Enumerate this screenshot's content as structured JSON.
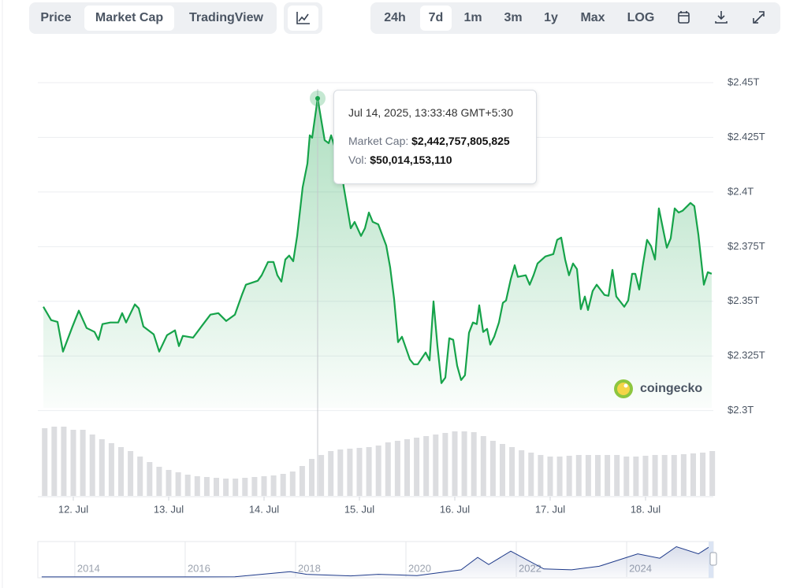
{
  "toolbar": {
    "tabs": [
      "Price",
      "Market Cap",
      "TradingView"
    ],
    "tabs_selected": 1,
    "ranges": [
      "24h",
      "7d",
      "1m",
      "3m",
      "1y",
      "Max",
      "LOG"
    ],
    "ranges_selected": 1
  },
  "chart_data": {
    "type": "area",
    "color": "#16a34a",
    "grid": true,
    "x": [
      11.686,
      11.768,
      11.835,
      11.892,
      11.992,
      12.058,
      12.14,
      12.223,
      12.264,
      12.306,
      12.388,
      12.471,
      12.512,
      12.554,
      12.645,
      12.686,
      12.735,
      12.843,
      12.901,
      12.983,
      13.066,
      13.107,
      13.149,
      13.256,
      13.355,
      13.438,
      13.521,
      13.603,
      13.694,
      13.768,
      13.81,
      13.934,
      13.975,
      14.041,
      14.099,
      14.14,
      14.182,
      14.223,
      14.264,
      14.306,
      14.347,
      14.405,
      14.455,
      14.479,
      14.504,
      14.562,
      14.603,
      14.636,
      14.678,
      14.703,
      14.744,
      14.802,
      14.835,
      14.909,
      14.95,
      15.017,
      15.058,
      15.099,
      15.14,
      15.198,
      15.281,
      15.322,
      15.364,
      15.405,
      15.446,
      15.529,
      15.57,
      15.612,
      15.694,
      15.736,
      15.777,
      15.818,
      15.86,
      15.901,
      15.942,
      15.984,
      16.025,
      16.066,
      16.107,
      16.149,
      16.19,
      16.231,
      16.256,
      16.298,
      16.339,
      16.372,
      16.413,
      16.463,
      16.504,
      16.537,
      16.587,
      16.628,
      16.661,
      16.744,
      16.785,
      16.826,
      16.868,
      16.95,
      17.033,
      17.074,
      17.116,
      17.157,
      17.198,
      17.24,
      17.281,
      17.322,
      17.364,
      17.397,
      17.446,
      17.488,
      17.57,
      17.612,
      17.653,
      17.694,
      17.777,
      17.818,
      17.86,
      17.893,
      17.934,
      17.975,
      18.016,
      18.058,
      18.099,
      18.14,
      18.182,
      18.223,
      18.264,
      18.306,
      18.347,
      18.388,
      18.471,
      18.512,
      18.554,
      18.612,
      18.653,
      18.694
    ],
    "values": [
      2.3475,
      2.3414,
      2.3406,
      2.327,
      2.3385,
      2.3457,
      2.3378,
      2.336,
      2.3324,
      2.3396,
      2.3403,
      2.3403,
      2.3446,
      2.3403,
      2.3486,
      2.3468,
      2.3385,
      2.3349,
      2.327,
      2.3345,
      2.3367,
      2.3295,
      2.3342,
      2.3334,
      2.3392,
      2.3439,
      2.3446,
      2.341,
      2.3439,
      2.3529,
      2.3576,
      2.3594,
      2.3619,
      2.368,
      2.368,
      2.3619,
      2.359,
      2.3691,
      2.3709,
      2.3683,
      2.3799,
      2.4022,
      2.413,
      2.4259,
      2.4248,
      2.4428,
      2.432,
      2.4237,
      2.4223,
      2.4259,
      2.4201,
      2.414,
      2.4025,
      2.3834,
      2.3863,
      2.3799,
      2.3834,
      2.3906,
      2.3863,
      2.3852,
      2.3755,
      2.3655,
      2.3511,
      2.3313,
      2.3338,
      2.3234,
      2.3212,
      2.3212,
      2.3266,
      2.323,
      2.35,
      2.3295,
      2.3126,
      2.3151,
      2.3331,
      2.3324,
      2.3205,
      2.314,
      2.3162,
      2.3356,
      2.3403,
      2.3396,
      2.3482,
      2.336,
      2.3374,
      2.3302,
      2.3338,
      2.3403,
      2.3493,
      2.3504,
      2.3601,
      2.3665,
      2.3612,
      2.3619,
      2.3576,
      2.3619,
      2.3673,
      2.3705,
      2.3716,
      2.3781,
      2.3791,
      2.3691,
      2.3619,
      2.3673,
      2.3647,
      2.3464,
      2.3522,
      2.346,
      2.3547,
      2.3576,
      2.3529,
      2.3525,
      2.3644,
      2.3522,
      2.3475,
      2.3504,
      2.3626,
      2.3626,
      2.3554,
      2.3673,
      2.3781,
      2.3752,
      2.3691,
      2.3925,
      2.3834,
      2.3745,
      2.3788,
      2.3925,
      2.3906,
      2.3914,
      2.395,
      2.3935,
      2.3806,
      2.3576,
      2.3633,
      2.3626
    ],
    "xlim": [
      11.628,
      18.711
    ],
    "xticks": [
      {
        "value": 12,
        "label": "12. Jul"
      },
      {
        "value": 13,
        "label": "13. Jul"
      },
      {
        "value": 14,
        "label": "14. Jul"
      },
      {
        "value": 15,
        "label": "15. Jul"
      },
      {
        "value": 16,
        "label": "16. Jul"
      },
      {
        "value": 17,
        "label": "17. Jul"
      },
      {
        "value": 18,
        "label": "18. Jul"
      }
    ],
    "ylim": [
      2.297,
      2.4536
    ],
    "yticks": [
      {
        "value": 2.3,
        "label": "$2.3T"
      },
      {
        "value": 2.325,
        "label": "$2.325T"
      },
      {
        "value": 2.35,
        "label": "$2.35T"
      },
      {
        "value": 2.375,
        "label": "$2.375T"
      },
      {
        "value": 2.4,
        "label": "$2.4T"
      },
      {
        "value": 2.425,
        "label": "$2.425T"
      },
      {
        "value": 2.45,
        "label": "$2.45T"
      }
    ],
    "volume": {
      "color": "#dcdde0",
      "ylim": [
        0,
        90
      ],
      "x": [
        11.7,
        11.8,
        11.9,
        12.0,
        12.1,
        12.2,
        12.3,
        12.4,
        12.5,
        12.6,
        12.7,
        12.8,
        12.9,
        13.0,
        13.1,
        13.2,
        13.3,
        13.4,
        13.5,
        13.6,
        13.7,
        13.8,
        13.9,
        14.0,
        14.1,
        14.2,
        14.3,
        14.4,
        14.5,
        14.6,
        14.7,
        14.8,
        14.9,
        15.0,
        15.1,
        15.2,
        15.3,
        15.4,
        15.5,
        15.6,
        15.7,
        15.8,
        15.9,
        16.0,
        16.1,
        16.2,
        16.3,
        16.4,
        16.5,
        16.6,
        16.7,
        16.8,
        16.9,
        17.0,
        17.1,
        17.2,
        17.3,
        17.4,
        17.5,
        17.6,
        17.7,
        17.8,
        17.9,
        18.0,
        18.1,
        18.2,
        18.3,
        18.4,
        18.5,
        18.6,
        18.7
      ],
      "values": [
        86,
        88,
        88,
        84,
        84,
        78,
        72,
        67,
        62,
        57,
        50,
        43,
        37,
        33,
        30,
        27,
        25,
        24,
        23,
        22,
        22,
        23,
        24,
        25,
        26,
        28,
        31,
        38,
        47,
        52,
        57,
        59,
        60,
        61,
        62,
        64,
        68,
        70,
        72,
        74,
        76,
        78,
        80,
        82,
        82,
        81,
        76,
        70,
        66,
        62,
        58,
        55,
        52,
        50,
        50,
        51,
        52,
        52,
        52,
        52,
        52,
        50,
        50,
        51,
        52,
        52,
        52,
        53,
        54,
        55,
        57
      ]
    },
    "tooltip": {
      "x": 14.562,
      "title": "Jul 14, 2025, 13:33:48 GMT+5:30",
      "rows": [
        {
          "label": "Market Cap:",
          "value": "$2,442,757,805,825"
        },
        {
          "label": "Vol:",
          "value": "$50,014,153,110"
        }
      ]
    },
    "watermark": "coingecko",
    "navigator": {
      "color": "#1e3a8a",
      "xlim": [
        2013.33,
        2025.57
      ],
      "ylim": [
        0,
        3.8
      ],
      "xticks": [
        2014,
        2016,
        2018,
        2020,
        2022,
        2024
      ],
      "x": [
        2013.4,
        2016.9,
        2017.9,
        2018.2,
        2019.0,
        2019.5,
        2020.0,
        2020.2,
        2021.0,
        2021.3,
        2021.5,
        2021.9,
        2022.5,
        2023.0,
        2023.5,
        2024.2,
        2024.6,
        2024.9,
        2025.3,
        2025.55
      ],
      "values": [
        0.01,
        0.02,
        0.6,
        0.3,
        0.12,
        0.3,
        0.2,
        0.15,
        0.8,
        2.2,
        1.4,
        2.9,
        0.9,
        0.8,
        1.2,
        2.6,
        2.1,
        3.4,
        2.6,
        3.6
      ]
    }
  }
}
